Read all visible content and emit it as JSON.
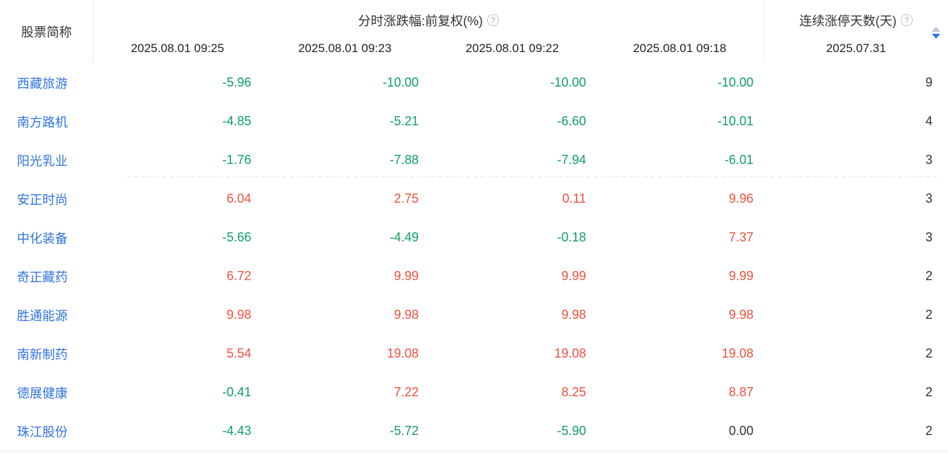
{
  "table": {
    "col1_header": "股票简称",
    "group_header": "分时涨跌幅:前复权(%)",
    "time_columns": [
      "2025.08.01 09:25",
      "2025.08.01 09:23",
      "2025.08.01 09:22",
      "2025.08.01 09:18"
    ],
    "right_header": "连续涨停天数(天)",
    "right_date": "2025.07.31",
    "sort_state": "descending",
    "rows": [
      {
        "name": "西藏旅游",
        "values": [
          "-5.96",
          "-10.00",
          "-10.00",
          "-10.00"
        ],
        "days": "9"
      },
      {
        "name": "南方路机",
        "values": [
          "-4.85",
          "-5.21",
          "-6.60",
          "-10.01"
        ],
        "days": "4"
      },
      {
        "name": "阳光乳业",
        "values": [
          "-1.76",
          "-7.88",
          "-7.94",
          "-6.01"
        ],
        "days": "3"
      },
      {
        "name": "安正时尚",
        "values": [
          "6.04",
          "2.75",
          "0.11",
          "9.96"
        ],
        "days": "3"
      },
      {
        "name": "中化装备",
        "values": [
          "-5.66",
          "-4.49",
          "-0.18",
          "7.37"
        ],
        "days": "3"
      },
      {
        "name": "奇正藏药",
        "values": [
          "6.72",
          "9.99",
          "9.99",
          "9.99"
        ],
        "days": "2"
      },
      {
        "name": "胜通能源",
        "values": [
          "9.98",
          "9.98",
          "9.98",
          "9.98"
        ],
        "days": "2"
      },
      {
        "name": "南新制药",
        "values": [
          "5.54",
          "19.08",
          "19.08",
          "19.08"
        ],
        "days": "2"
      },
      {
        "name": "德展健康",
        "values": [
          "-0.41",
          "7.22",
          "8.25",
          "8.87"
        ],
        "days": "2"
      },
      {
        "name": "珠江股份",
        "values": [
          "-4.43",
          "-5.72",
          "-5.90",
          "0.00"
        ],
        "days": "2"
      }
    ]
  },
  "icons": {
    "help": "?"
  },
  "colors": {
    "stock_name_blue": "#3274e0",
    "fall_green": "#0fa05e",
    "rise_red": "#f2503e",
    "sort_active_blue": "#2f7ae0",
    "sort_inactive_gray": "#b9c2d0",
    "divider_gray": "#ececec"
  }
}
